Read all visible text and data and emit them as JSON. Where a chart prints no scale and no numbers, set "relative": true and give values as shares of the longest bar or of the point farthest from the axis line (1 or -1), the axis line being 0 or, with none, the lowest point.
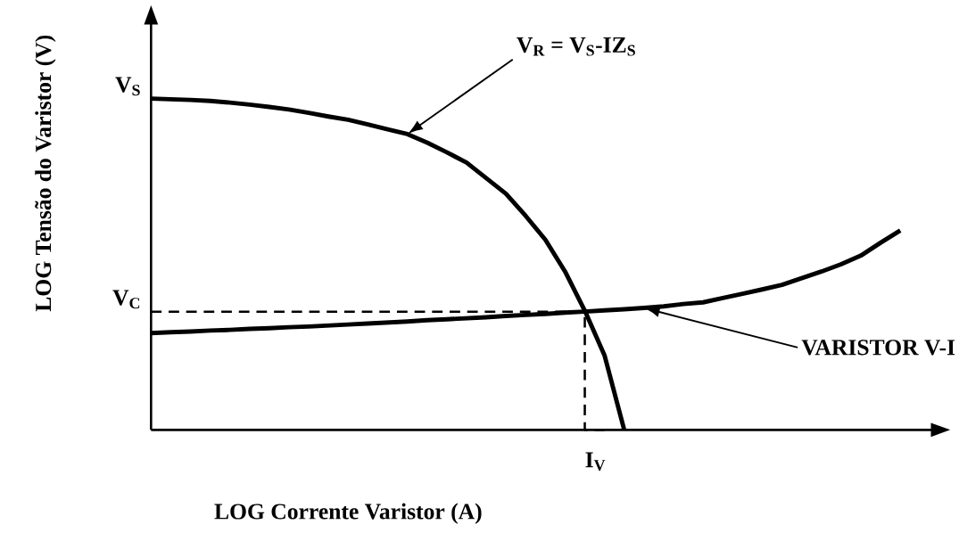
{
  "chart_data": {
    "type": "line",
    "relative": true,
    "xlabel": "LOG Corrente Varistor (A)",
    "ylabel": "LOG Tensão do Varistor (V)",
    "categories": [
      null,
      null,
      null,
      null,
      null,
      null,
      null,
      null,
      null,
      null,
      null,
      null,
      null,
      null,
      null,
      null,
      null,
      null,
      null,
      null,
      null,
      null,
      null,
      null,
      null,
      null,
      null,
      null,
      null,
      null,
      null,
      null,
      null,
      null,
      null,
      null,
      null,
      null,
      null
    ],
    "series": [
      {
        "color": "#000000",
        "values": [
          1.0,
          0.998,
          0.996,
          0.993,
          0.988,
          0.982,
          0.975,
          0.967,
          0.957,
          0.946,
          0.936,
          0.922,
          0.907,
          0.893,
          0.867,
          0.838,
          0.807,
          0.76,
          0.713,
          0.646,
          0.574,
          0.478,
          0.36,
          0.225,
          0,
          null,
          null,
          null,
          null,
          null,
          null,
          null,
          null,
          null,
          null,
          null,
          null,
          null,
          null
        ]
      },
      {
        "color": "#000000",
        "values": [
          0.292,
          0.295,
          0.297,
          0.3,
          0.302,
          0.305,
          0.307,
          0.31,
          0.312,
          0.315,
          0.318,
          0.321,
          0.324,
          0.327,
          0.331,
          0.334,
          0.337,
          0.34,
          0.344,
          0.347,
          0.35,
          0.354,
          0.357,
          0.361,
          0.364,
          0.368,
          0.373,
          0.38,
          0.385,
          0.398,
          0.411,
          0.424,
          0.438,
          0.458,
          0.478,
          0.5,
          0.526,
          0.565,
          0.602
        ]
      },
      {
        "type": "step",
        "color": "#000000",
        "line_style": "dashed",
        "values": [
          0.357,
          0.357,
          0.357,
          0.357,
          0.357,
          0.357,
          0.357,
          0.357,
          0.357,
          0.357,
          0.357,
          0.357,
          0.357,
          0.357,
          0.357,
          0.357,
          0.357,
          0.357,
          0.357,
          0.357,
          0.357,
          0.357,
          0.357,
          0,
          null,
          null,
          null,
          null,
          null,
          null,
          null,
          null,
          null,
          null,
          null,
          null,
          null,
          null,
          null
        ]
      }
    ],
    "annotations": [
      "V$_{S}$",
      "V$_{C}$",
      "I$_{V}$",
      "V$_{R}$ = V$_{S}$-IZ$_{S}$",
      "VARISTOR V-I"
    ]
  }
}
